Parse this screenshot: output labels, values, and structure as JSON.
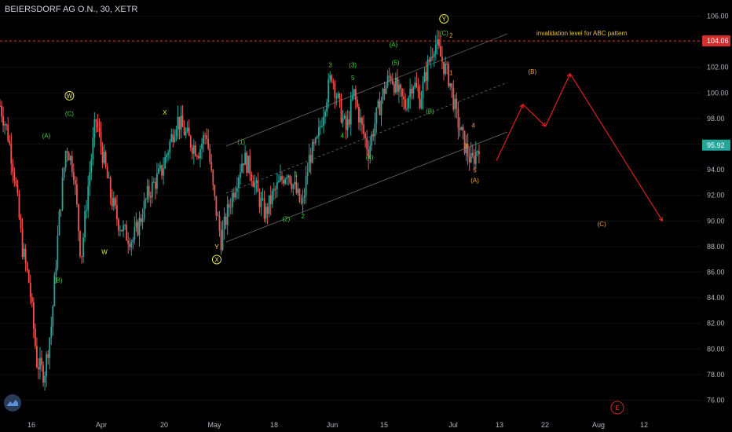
{
  "header": {
    "symbol_title": "BEIERSDORF AG O.N., 30, XETR"
  },
  "colors": {
    "background": "#000000",
    "up_candle": "#26a69a",
    "down_candle": "#ef5350",
    "green_label": "#3fd13f",
    "yellow_label": "#e8e84a",
    "orange_label": "#f0a030",
    "projection": "#e02020",
    "price_badge_current": "#26a69a",
    "price_badge_invalidation": "#d32f2f"
  },
  "chart_data": {
    "type": "candlestick",
    "title": "",
    "y_axis": {
      "position": "right",
      "ticks": [
        106.0,
        104.0,
        102.0,
        100.0,
        98.0,
        96.0,
        94.0,
        92.0,
        90.0,
        88.0,
        86.0,
        84.0,
        82.0,
        80.0,
        78.0,
        76.0
      ],
      "tick_labels": [
        "106.00",
        "104.00",
        "102.00",
        "100.00",
        "98.00",
        "96.00",
        "94.00",
        "92.00",
        "90.00",
        "88.00",
        "86.00",
        "84.00",
        "82.00",
        "80.00",
        "78.00",
        "76.00"
      ],
      "range": [
        75,
        107
      ]
    },
    "x_axis": {
      "tick_labels": [
        "16",
        "Apr",
        "20",
        "May",
        "18",
        "Jun",
        "15",
        "Jul",
        "13",
        "22",
        "Aug",
        "12"
      ]
    },
    "current_price": {
      "value": 95.92,
      "label": "95.92"
    },
    "invalidation_level": {
      "value": 104.06,
      "label": "104.06",
      "text": "invalidation level for ABC pattern"
    },
    "price_path": [
      99.0,
      97.0,
      93.5,
      88.0,
      85.0,
      79.0,
      78.0,
      82.0,
      90.0,
      96.0,
      94.0,
      87.0,
      93.0,
      98.0,
      95.0,
      92.0,
      90.0,
      89.0,
      88.5,
      90.0,
      92.0,
      93.0,
      94.0,
      96.0,
      98.0,
      97.0,
      96.0,
      95.5,
      97.0,
      92.0,
      88.5,
      91.0,
      93.0,
      95.0,
      94.0,
      92.0,
      90.5,
      92.0,
      93.0,
      94.0,
      92.5,
      91.0,
      95.0,
      96.0,
      99.0,
      101.5,
      99.0,
      97.0,
      100.0,
      97.5,
      95.5,
      98.0,
      100.0,
      101.5,
      100.0,
      99.0,
      101.0,
      99.5,
      102.0,
      104.0,
      102.5,
      101.0,
      98.0,
      96.0,
      94.5,
      96.0
    ],
    "projection_path": [
      {
        "x_frac": 0.0,
        "y": 94.7
      },
      {
        "x_frac": 0.13,
        "y": 99.1
      },
      {
        "x_frac": 0.24,
        "y": 97.4
      },
      {
        "x_frac": 0.36,
        "y": 101.5
      },
      {
        "x_frac": 0.81,
        "y": 90.0
      }
    ],
    "annotations": [
      {
        "text": "(A)",
        "color": "green",
        "x_frac": 0.066,
        "y": 96.5
      },
      {
        "text": "(C)",
        "color": "green",
        "x_frac": 0.099,
        "y": 98.2
      },
      {
        "text": "W",
        "color": "yellow",
        "circled": true,
        "x_frac": 0.099,
        "y": 99.6
      },
      {
        "text": "(B)",
        "color": "green",
        "x_frac": 0.083,
        "y": 85.2
      },
      {
        "text": "W",
        "color": "yellow",
        "x_frac": 0.149,
        "y": 87.4
      },
      {
        "text": "X",
        "color": "yellow",
        "x_frac": 0.235,
        "y": 98.3
      },
      {
        "text": "Y",
        "color": "yellow",
        "x_frac": 0.309,
        "y": 87.8
      },
      {
        "text": "X",
        "color": "yellow",
        "circled": true,
        "x_frac": 0.309,
        "y": 86.8
      },
      {
        "text": "(1)",
        "color": "green",
        "x_frac": 0.344,
        "y": 96.0
      },
      {
        "text": "(2)",
        "color": "green",
        "x_frac": 0.408,
        "y": 90.0
      },
      {
        "text": "1",
        "color": "green",
        "x_frac": 0.422,
        "y": 93.5
      },
      {
        "text": "2",
        "color": "green",
        "x_frac": 0.432,
        "y": 90.2
      },
      {
        "text": "3",
        "color": "green",
        "x_frac": 0.471,
        "y": 102.0
      },
      {
        "text": "4",
        "color": "green",
        "x_frac": 0.488,
        "y": 96.5
      },
      {
        "text": "(3)",
        "color": "green",
        "x_frac": 0.503,
        "y": 102.0
      },
      {
        "text": "5",
        "color": "green",
        "x_frac": 0.503,
        "y": 101.0
      },
      {
        "text": "(4)",
        "color": "green",
        "x_frac": 0.527,
        "y": 94.8
      },
      {
        "text": "(5)",
        "color": "green",
        "x_frac": 0.564,
        "y": 102.2
      },
      {
        "text": "(A)",
        "color": "green",
        "x_frac": 0.561,
        "y": 103.6
      },
      {
        "text": "(B)",
        "color": "green",
        "x_frac": 0.613,
        "y": 98.4
      },
      {
        "text": "Y",
        "color": "yellow",
        "circled": true,
        "x_frac": 0.633,
        "y": 105.6
      },
      {
        "text": "(C)",
        "color": "green",
        "x_frac": 0.633,
        "y": 104.5
      },
      {
        "text": "2",
        "color": "orange",
        "x_frac": 0.643,
        "y": 104.3
      },
      {
        "text": "1",
        "color": "orange",
        "x_frac": 0.643,
        "y": 101.4
      },
      {
        "text": "4",
        "color": "orange",
        "x_frac": 0.675,
        "y": 97.3
      },
      {
        "text": "3",
        "color": "orange",
        "x_frac": 0.664,
        "y": 95.7
      },
      {
        "text": "5",
        "color": "orange",
        "x_frac": 0.677,
        "y": 93.8
      },
      {
        "text": "(A)",
        "color": "orange",
        "x_frac": 0.677,
        "y": 93.0
      },
      {
        "text": "(B)",
        "color": "orange",
        "x_frac": 0.759,
        "y": 101.5
      },
      {
        "text": "(C)",
        "color": "orange",
        "x_frac": 0.858,
        "y": 89.6
      }
    ],
    "event_marker": {
      "text": "E"
    }
  }
}
